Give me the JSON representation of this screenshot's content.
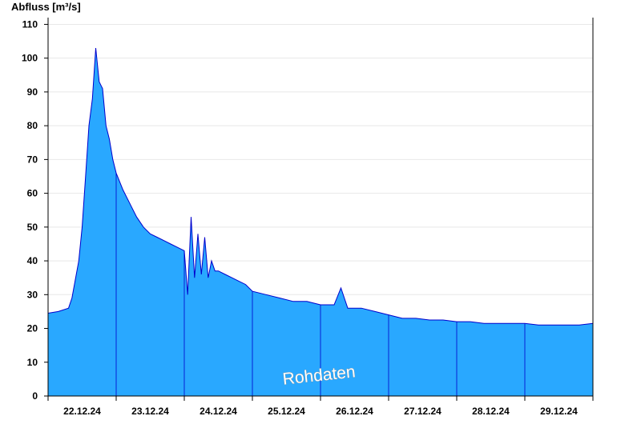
{
  "chart_data": {
    "type": "area",
    "title": "",
    "ylabel": "Abfluss [m³/s]",
    "xlabel": "",
    "ylim": [
      0,
      112
    ],
    "yticks": [
      0,
      10,
      20,
      30,
      40,
      50,
      60,
      70,
      80,
      90,
      100,
      110
    ],
    "xlim": [
      0,
      8
    ],
    "day_labels": [
      "22.12.24",
      "23.12.24",
      "24.12.24",
      "25.12.24",
      "26.12.24",
      "27.12.24",
      "28.12.24",
      "29.12.24"
    ],
    "grid": "horizontal",
    "watermark": "Rohdaten",
    "colors": {
      "fill": "#29a8ff",
      "line": "#0000cc",
      "axis": "#000000",
      "grid": "#e8e8e8"
    },
    "series": [
      {
        "x": [
          0,
          0.15,
          0.3,
          0.35,
          0.45,
          0.5,
          0.55,
          0.6,
          0.65,
          0.7,
          0.75,
          0.8,
          0.85,
          0.9,
          0.95,
          1.0,
          1.1,
          1.2,
          1.3,
          1.4,
          1.5,
          1.6,
          1.7,
          1.8,
          1.9,
          2.0,
          2.05,
          2.1,
          2.15,
          2.2,
          2.25,
          2.3,
          2.35,
          2.4,
          2.45,
          2.5,
          2.6,
          2.7,
          2.8,
          2.9,
          3.0,
          3.2,
          3.4,
          3.6,
          3.8,
          4.0,
          4.2,
          4.3,
          4.4,
          4.6,
          4.8,
          5.0,
          5.2,
          5.4,
          5.6,
          5.8,
          6.0,
          6.2,
          6.4,
          6.6,
          6.8,
          7.0,
          7.2,
          7.4,
          7.6,
          7.8,
          8.0
        ],
        "y": [
          24.5,
          25,
          26,
          29,
          40,
          50,
          65,
          80,
          88,
          103,
          93,
          91,
          80,
          76,
          70,
          66,
          61,
          57,
          53,
          50,
          48,
          47,
          46,
          45,
          44,
          43,
          30,
          53,
          35,
          48,
          36,
          47,
          35,
          40,
          37,
          37,
          36,
          35,
          34,
          33,
          31,
          30,
          29,
          28,
          28,
          27,
          27,
          32,
          26,
          26,
          25,
          24,
          23,
          23,
          22.5,
          22.5,
          22,
          22,
          21.5,
          21.5,
          21.5,
          21.5,
          21,
          21,
          21,
          21,
          21.5
        ]
      }
    ]
  }
}
